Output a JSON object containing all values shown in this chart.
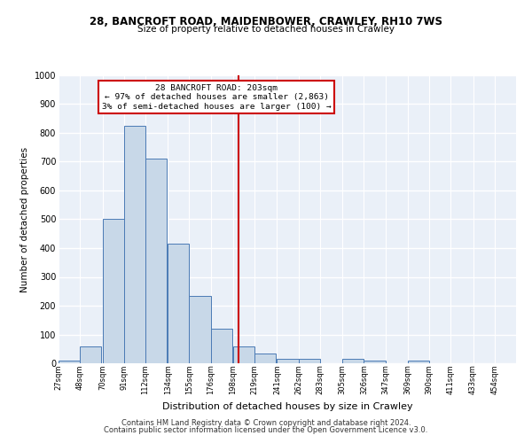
{
  "title1": "28, BANCROFT ROAD, MAIDENBOWER, CRAWLEY, RH10 7WS",
  "title2": "Size of property relative to detached houses in Crawley",
  "xlabel": "Distribution of detached houses by size in Crawley",
  "ylabel": "Number of detached properties",
  "bin_labels": [
    "27sqm",
    "48sqm",
    "70sqm",
    "91sqm",
    "112sqm",
    "134sqm",
    "155sqm",
    "176sqm",
    "198sqm",
    "219sqm",
    "241sqm",
    "262sqm",
    "283sqm",
    "305sqm",
    "326sqm",
    "347sqm",
    "369sqm",
    "390sqm",
    "411sqm",
    "433sqm",
    "454sqm"
  ],
  "bin_edges": [
    27,
    48,
    70,
    91,
    112,
    134,
    155,
    176,
    198,
    219,
    241,
    262,
    283,
    305,
    326,
    347,
    369,
    390,
    411,
    433,
    454
  ],
  "bar_heights": [
    8,
    60,
    500,
    825,
    710,
    415,
    235,
    120,
    60,
    35,
    15,
    15,
    0,
    15,
    10,
    0,
    10,
    0,
    0,
    0,
    0
  ],
  "bar_color": "#c8d8e8",
  "bar_edge_color": "#4a7ab5",
  "property_size": 203,
  "vline_color": "#cc0000",
  "annotation_line1": "28 BANCROFT ROAD: 203sqm",
  "annotation_line2": "← 97% of detached houses are smaller (2,863)",
  "annotation_line3": "3% of semi-detached houses are larger (100) →",
  "annotation_box_color": "#ffffff",
  "annotation_box_edge": "#cc0000",
  "ylim": [
    0,
    1000
  ],
  "yticks": [
    0,
    100,
    200,
    300,
    400,
    500,
    600,
    700,
    800,
    900,
    1000
  ],
  "background_color": "#eaf0f8",
  "grid_color": "#ffffff",
  "footer1": "Contains HM Land Registry data © Crown copyright and database right 2024.",
  "footer2": "Contains public sector information licensed under the Open Government Licence v3.0."
}
